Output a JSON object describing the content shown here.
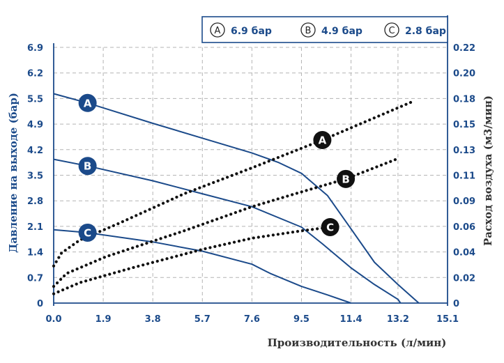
{
  "chart_data": {
    "type": "line",
    "xlabel": "Производительность (л/мин)",
    "ylabel_left": "Давление на выходе (бар)",
    "ylabel_right": "Расход воздуха (м3/мин)",
    "x_ticks": [
      "0.0",
      "1.9",
      "3.8",
      "5.7",
      "7.6",
      "9.5",
      "11.4",
      "13.2",
      "15.1"
    ],
    "x_tick_values": [
      0,
      1.9,
      3.8,
      5.7,
      7.6,
      9.5,
      11.4,
      13.2,
      15.1
    ],
    "y_left_ticks": [
      "0",
      "0.7",
      "1.4",
      "2.1",
      "2.8",
      "3.5",
      "4.2",
      "4.9",
      "5.5",
      "6.2",
      "6.9"
    ],
    "y_right_ticks": [
      "0",
      "0.02",
      "0.04",
      "0.06",
      "0.09",
      "0.11",
      "0.13",
      "0.15",
      "0.18",
      "0.20",
      "0.22"
    ],
    "xlim": [
      0,
      15.1
    ],
    "ylim_left": [
      0,
      6.9
    ],
    "legend": [
      {
        "marker": "A",
        "label": "6.9 бар"
      },
      {
        "marker": "B",
        "label": "4.9 бар"
      },
      {
        "marker": "C",
        "label": "2.8 бар"
      }
    ],
    "pressure_series": [
      {
        "name": "A",
        "marker_at": [
          1.3,
          5.4
        ],
        "points": [
          [
            0,
            5.65
          ],
          [
            1.3,
            5.4
          ],
          [
            3.8,
            4.85
          ],
          [
            5.7,
            4.45
          ],
          [
            7.6,
            4.05
          ],
          [
            8.6,
            3.8
          ],
          [
            9.5,
            3.5
          ],
          [
            10.5,
            2.9
          ],
          [
            11.4,
            2.0
          ],
          [
            12.3,
            1.1
          ],
          [
            13.2,
            0.5
          ],
          [
            14.0,
            0
          ]
        ]
      },
      {
        "name": "B",
        "marker_at": [
          1.3,
          3.7
        ],
        "points": [
          [
            0,
            3.88
          ],
          [
            1.3,
            3.7
          ],
          [
            3.8,
            3.3
          ],
          [
            5.7,
            2.95
          ],
          [
            7.6,
            2.6
          ],
          [
            9.5,
            2.05
          ],
          [
            10.3,
            1.6
          ],
          [
            11.4,
            0.95
          ],
          [
            12.3,
            0.5
          ],
          [
            13.2,
            0.1
          ],
          [
            13.3,
            0
          ]
        ]
      },
      {
        "name": "C",
        "marker_at": [
          1.3,
          1.9
        ],
        "points": [
          [
            0,
            1.98
          ],
          [
            1.3,
            1.9
          ],
          [
            3.8,
            1.65
          ],
          [
            5.7,
            1.4
          ],
          [
            7.6,
            1.05
          ],
          [
            8.3,
            0.8
          ],
          [
            9.5,
            0.45
          ],
          [
            10.5,
            0.22
          ],
          [
            11.4,
            0
          ]
        ]
      }
    ],
    "airflow_series": [
      {
        "name": "A",
        "marker_at": [
          10.3,
          4.4
        ],
        "points": [
          [
            0,
            1.0
          ],
          [
            0.3,
            1.35
          ],
          [
            1.0,
            1.7
          ],
          [
            2.5,
            2.15
          ],
          [
            5.0,
            2.95
          ],
          [
            7.6,
            3.65
          ],
          [
            10.3,
            4.4
          ],
          [
            12.3,
            5.0
          ],
          [
            13.8,
            5.45
          ]
        ]
      },
      {
        "name": "B",
        "marker_at": [
          11.2,
          3.35
        ],
        "points": [
          [
            0,
            0.45
          ],
          [
            0.5,
            0.8
          ],
          [
            2.0,
            1.25
          ],
          [
            5.0,
            1.95
          ],
          [
            7.6,
            2.6
          ],
          [
            9.5,
            3.0
          ],
          [
            11.2,
            3.35
          ],
          [
            13.2,
            3.9
          ]
        ]
      },
      {
        "name": "C",
        "marker_at": [
          10.6,
          2.05
        ],
        "points": [
          [
            0,
            0.25
          ],
          [
            1.0,
            0.55
          ],
          [
            3.0,
            0.95
          ],
          [
            5.7,
            1.45
          ],
          [
            7.6,
            1.75
          ],
          [
            9.5,
            1.95
          ],
          [
            10.6,
            2.05
          ]
        ]
      }
    ],
    "colors": {
      "pressure": "#1b4a8a",
      "airflow": "#111111",
      "grid": "#b4b4b4",
      "axis": "#1b4a8a"
    }
  }
}
